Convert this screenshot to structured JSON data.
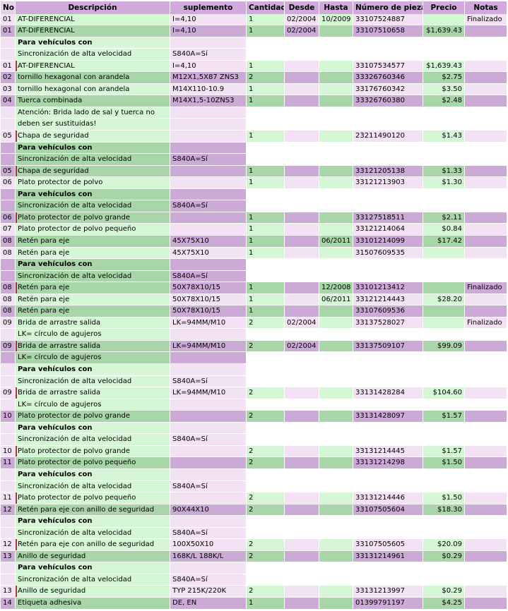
{
  "table": {
    "columns": [
      "No.",
      "Descripción",
      "suplemento",
      "Cantidad",
      "Desde",
      "Hasta",
      "Número de pieza",
      "Precio",
      "Notas"
    ],
    "rows": [
      [
        [
          "01",
          "AT-DIFERENCIAL",
          "I=4,10",
          "1",
          "02/2004",
          "10/2009",
          "33107524887",
          null,
          "Finalizado"
        ]
      ],
      [
        [
          "01",
          "AT-DIFERENCIAL",
          "I=4,10",
          "1",
          "02/2004",
          null,
          "33107510658",
          "$1,639.43",
          null
        ]
      ],
      [
        [
          null,
          "Para vehículos con",
          null,
          null,
          null,
          null,
          null,
          null,
          null
        ],
        [
          null,
          "Sincronización de alta velocidad",
          "S840A=Sí",
          null,
          null,
          null,
          null,
          null,
          null
        ],
        [
          "01",
          "AT-DIFERENCIAL",
          "I=4,10",
          "1",
          null,
          null,
          "33107534577",
          "$1,639.43",
          null
        ]
      ],
      [
        [
          "02",
          "tornillo hexagonal con arandela",
          "M12X1,5X87 ZNS3",
          "2",
          null,
          null,
          "33326760346",
          "$2.75",
          null
        ]
      ],
      [
        [
          "03",
          "tornillo hexagonal con arandela",
          "M14X110-10.9",
          "1",
          null,
          null,
          "33176760342",
          "$3.50",
          null
        ]
      ],
      [
        [
          "04",
          "Tuerca combinada",
          "M14X1,5-10ZNS3",
          "1",
          null,
          null,
          "33326760380",
          "$2.48",
          null
        ]
      ],
      [
        [
          null,
          "Atención: Brida lado de sal y tuerca no",
          null,
          null,
          null,
          null,
          null,
          null,
          null
        ],
        [
          null,
          "deben ser sustituidas!",
          null,
          null,
          null,
          null,
          null,
          null,
          null
        ],
        [
          "05",
          "Chapa de seguridad",
          null,
          "1",
          null,
          null,
          "23211490120",
          "$1.43",
          null
        ]
      ],
      [
        [
          null,
          "Para vehículos con",
          null,
          null,
          null,
          null,
          null,
          null,
          null
        ],
        [
          null,
          "Sincronización de alta velocidad",
          "S840A=Sí",
          null,
          null,
          null,
          null,
          null,
          null
        ],
        [
          "05",
          "Chapa de seguridad",
          null,
          "1",
          null,
          null,
          "33121205138",
          "$1.33",
          null
        ]
      ],
      [
        [
          "06",
          "Plato protector de polvo",
          null,
          "1",
          null,
          null,
          "33121213903",
          "$1.30",
          null
        ]
      ],
      [
        [
          null,
          "Para vehículos con",
          null,
          null,
          null,
          null,
          null,
          null,
          null
        ],
        [
          null,
          "Sincronización de alta velocidad",
          "S840A=Sí",
          null,
          null,
          null,
          null,
          null,
          null
        ],
        [
          "06",
          "Plato protector de polvo grande",
          null,
          "1",
          null,
          null,
          "33127518511",
          "$2.11",
          null
        ]
      ],
      [
        [
          "07",
          "Plato protector de polvo pequeño",
          null,
          "1",
          null,
          null,
          "33121214064",
          "$0.84",
          null
        ]
      ],
      [
        [
          "08",
          "Retén para eje",
          "45X75X10",
          "1",
          null,
          "06/2011",
          "33101214099",
          "$17.42",
          null
        ]
      ],
      [
        [
          "08",
          "Retén para eje",
          "45X75X10",
          "1",
          null,
          null,
          "31507609535",
          null,
          null
        ]
      ],
      [
        [
          null,
          "Para vehículos con",
          null,
          null,
          null,
          null,
          null,
          null,
          null
        ],
        [
          null,
          "Sincronización de alta velocidad",
          "S840A=Sí",
          null,
          null,
          null,
          null,
          null,
          null
        ],
        [
          "08",
          "Retén para eje",
          "50X78X10/15",
          "1",
          null,
          "12/2008",
          "33101213412",
          null,
          "Finalizado"
        ]
      ],
      [
        [
          "08",
          "Retén para eje",
          "50X78X10/15",
          "1",
          null,
          "06/2011",
          "33121214443",
          "$28.20",
          null
        ]
      ],
      [
        [
          "08",
          "Retén para eje",
          "50X78X10/15",
          "1",
          null,
          null,
          "33107609536",
          null,
          null
        ]
      ],
      [
        [
          "09",
          "Brida de arrastre salida",
          "LK=94MM/M10",
          "2",
          "02/2004",
          null,
          "33137528027",
          null,
          "Finalizado"
        ],
        [
          null,
          "LK= círculo de agujeros",
          null,
          null,
          null,
          null,
          null,
          null,
          null
        ]
      ],
      [
        [
          "09",
          "Brida de arrastre salida",
          "LK=94MM/M10",
          "2",
          "02/2004",
          null,
          "33137509107",
          "$99.09",
          null
        ],
        [
          null,
          "LK= círculo de agujeros",
          null,
          null,
          null,
          null,
          null,
          null,
          null
        ]
      ],
      [
        [
          null,
          "Para vehículos con",
          null,
          null,
          null,
          null,
          null,
          null,
          null
        ],
        [
          null,
          "Sincronización de alta velocidad",
          "S840A=Sí",
          null,
          null,
          null,
          null,
          null,
          null
        ],
        [
          "09",
          "Brida de arrastre salida",
          "LK=94MM/M10",
          "2",
          null,
          null,
          "33131428284",
          "$104.60",
          null
        ],
        [
          null,
          "LK= círculo de agujeros",
          null,
          null,
          null,
          null,
          null,
          null,
          null
        ]
      ],
      [
        [
          "10",
          "Plato protector de polvo grande",
          null,
          "2",
          null,
          null,
          "33131428097",
          "$1.57",
          null
        ]
      ],
      [
        [
          null,
          "Para vehículos con",
          null,
          null,
          null,
          null,
          null,
          null,
          null
        ],
        [
          null,
          "Sincronización de alta velocidad",
          "S840A=Sí",
          null,
          null,
          null,
          null,
          null,
          null
        ],
        [
          "10",
          "Plato protector de polvo grande",
          null,
          "2",
          null,
          null,
          "33131214445",
          "$1.57",
          null
        ]
      ],
      [
        [
          "11",
          "Plato protector de polvo pequeño",
          null,
          "2",
          null,
          null,
          "33131214298",
          "$1.50",
          null
        ]
      ],
      [
        [
          null,
          "Para vehículos con",
          null,
          null,
          null,
          null,
          null,
          null,
          null
        ],
        [
          null,
          "Sincronización de alta velocidad",
          "S840A=Sí",
          null,
          null,
          null,
          null,
          null,
          null
        ],
        [
          "11",
          "Plato protector de polvo pequeño",
          null,
          "2",
          null,
          null,
          "33131214446",
          "$1.50",
          null
        ]
      ],
      [
        [
          "12",
          "Retén para eje con anillo de seguridad",
          "90X44X10",
          "2",
          null,
          null,
          "33107505604",
          "$18.30",
          null
        ]
      ],
      [
        [
          null,
          "Para vehículos con",
          null,
          null,
          null,
          null,
          null,
          null,
          null
        ],
        [
          null,
          "Sincronización de alta velocidad",
          "S840A=Sí",
          null,
          null,
          null,
          null,
          null,
          null
        ],
        [
          "12",
          "Retén para eje con anillo de seguridad",
          "100X50X10",
          "2",
          null,
          null,
          "33107505605",
          "$20.09",
          null
        ]
      ],
      [
        [
          "13",
          "Anillo de seguridad",
          "168K/L 188K/L",
          "2",
          null,
          null,
          "33131214961",
          "$0.29",
          null
        ]
      ],
      [
        [
          null,
          "Para vehículos con",
          null,
          null,
          null,
          null,
          null,
          null,
          null
        ],
        [
          null,
          "Sincronización de alta velocidad",
          "S840A=Sí",
          null,
          null,
          null,
          null,
          null,
          null
        ],
        [
          "13",
          "Anillo de seguridad",
          "TYP 215K/220K",
          "2",
          null,
          null,
          "33131213997",
          "$0.29",
          null
        ]
      ],
      [
        [
          "14",
          "Etiqueta adhesiva",
          "DE, EN",
          "1",
          null,
          null,
          "01399791197",
          "$4.25",
          null
        ]
      ]
    ]
  }
}
